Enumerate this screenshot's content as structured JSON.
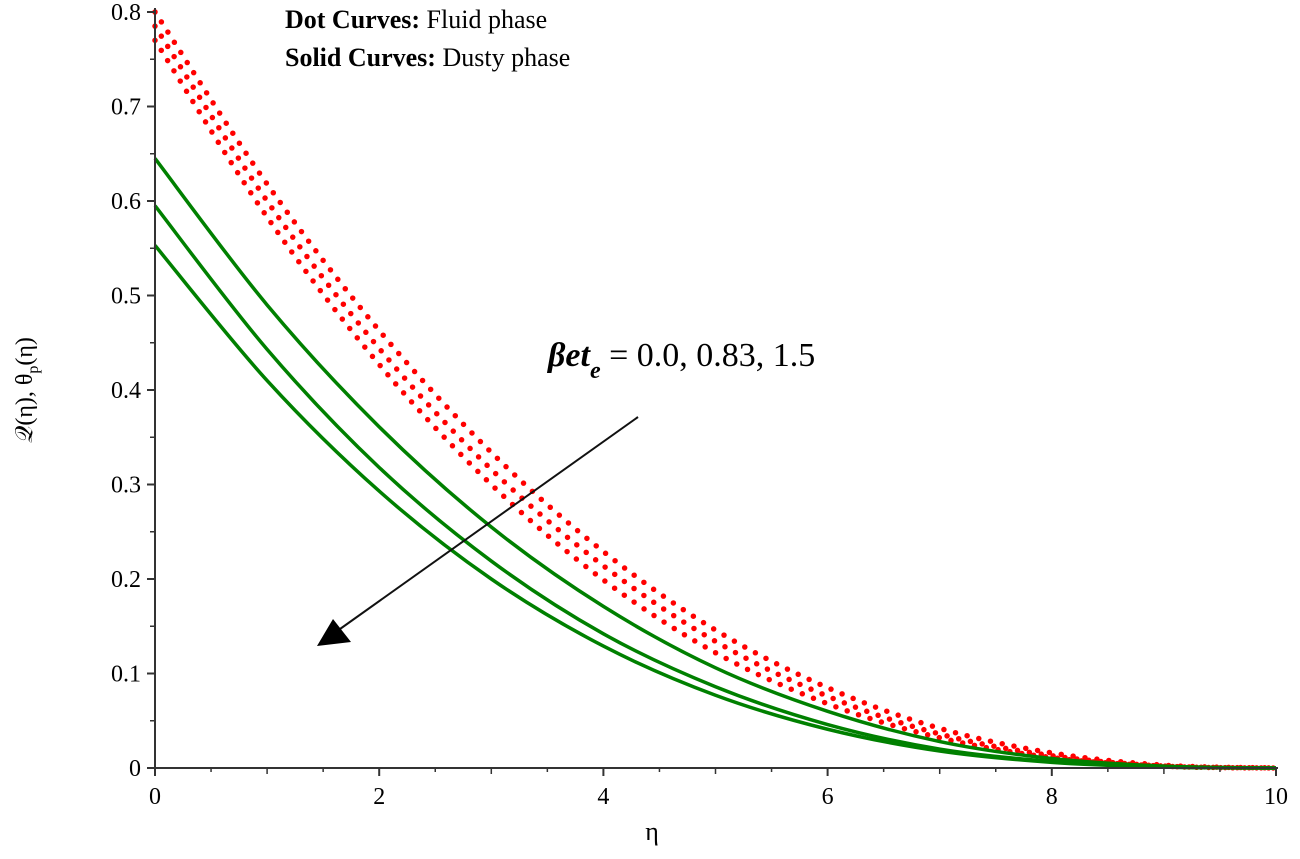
{
  "chart_data": {
    "type": "line",
    "title": "",
    "xlabel": "η",
    "ylabel": "𝒬(η), θ",
    "ylabel_sub": "p",
    "ylabel_tail": "(η)",
    "xlim": [
      0,
      10
    ],
    "ylim": [
      0,
      0.8
    ],
    "xticks": [
      0,
      2,
      4,
      6,
      8,
      10
    ],
    "xtick_labels": [
      "0",
      "2",
      "4",
      "6",
      "8",
      "10"
    ],
    "yticks": [
      0,
      0.1,
      0.2,
      0.3,
      0.4,
      0.5,
      0.6,
      0.7,
      0.8
    ],
    "ytick_labels": [
      "0",
      "0.1",
      "0.2",
      "0.3",
      "0.4",
      "0.5",
      "0.6",
      "0.7",
      "0.8"
    ],
    "grid": false,
    "legend": {
      "placement": "top-center",
      "lines": [
        {
          "bold": "Dot Curves:",
          "text": " Fluid phase"
        },
        {
          "bold": "Solid Curves:",
          "text": " Dusty phase"
        }
      ]
    },
    "annotation": {
      "symbol": "βet",
      "subscript": "e",
      "text": " = 0.0, 0.83, 1.5",
      "arrow": "points toward decreasing values"
    },
    "x": [
      0,
      1,
      2,
      3,
      4,
      5,
      6,
      7,
      8,
      9,
      10
    ],
    "series": [
      {
        "group": "fluid",
        "style": "dotted",
        "color": "#ff0000",
        "values": [
          0.8,
          0.618,
          0.463,
          0.334,
          0.229,
          0.146,
          0.085,
          0.042,
          0.016,
          0.003,
          0
        ]
      },
      {
        "group": "fluid",
        "style": "dotted",
        "color": "#ff0000",
        "values": [
          0.785,
          0.6,
          0.444,
          0.316,
          0.214,
          0.134,
          0.076,
          0.036,
          0.013,
          0.002,
          0
        ]
      },
      {
        "group": "fluid",
        "style": "dotted",
        "color": "#ff0000",
        "values": [
          0.77,
          0.583,
          0.427,
          0.3,
          0.199,
          0.122,
          0.068,
          0.032,
          0.011,
          0.002,
          0
        ]
      },
      {
        "group": "dusty",
        "style": "solid",
        "color": "#008000",
        "values": [
          0.645,
          0.49,
          0.361,
          0.255,
          0.171,
          0.106,
          0.06,
          0.028,
          0.01,
          0.002,
          0
        ]
      },
      {
        "group": "dusty",
        "style": "solid",
        "color": "#008000",
        "values": [
          0.595,
          0.443,
          0.318,
          0.219,
          0.142,
          0.086,
          0.046,
          0.02,
          0.007,
          0.001,
          0
        ]
      },
      {
        "group": "dusty",
        "style": "solid",
        "color": "#008000",
        "values": [
          0.553,
          0.41,
          0.293,
          0.2,
          0.129,
          0.077,
          0.041,
          0.018,
          0.006,
          0.001,
          0
        ]
      }
    ]
  }
}
